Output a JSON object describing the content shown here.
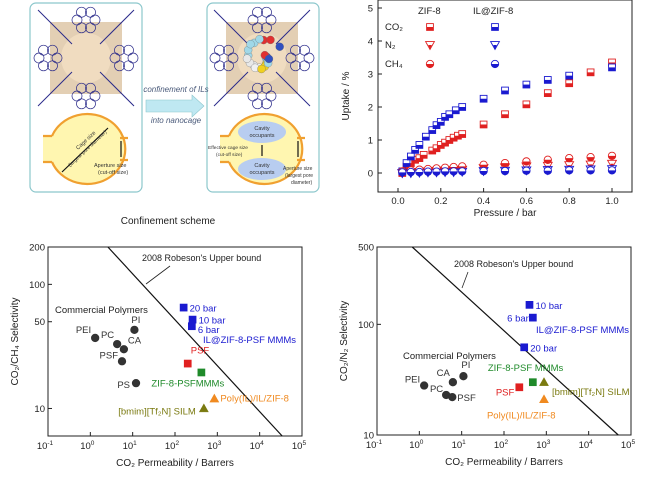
{
  "scheme": {
    "caption": "Confinement scheme",
    "arrow_top": "confinement of ILs",
    "arrow_bottom": "into nanocage",
    "left_cage_size": "Cage size",
    "left_cage_size_sub": "(largest pore diameter)",
    "left_aperture": "Aperture size",
    "left_aperture_sub": "(cut-off size)",
    "cavity_1": "Cavity",
    "cavity_1b": "occupants",
    "cavity_2": "Cavity",
    "cavity_2b": "occupants",
    "effective": "Effective cage size",
    "effective_sub": "(cut-off size)",
    "right_aperture": "Aperture size",
    "right_aperture_sub": "(largest pore",
    "right_aperture_sub2": "diameter)",
    "colors": {
      "border": "#8cc7cc",
      "ring": "#f0a030",
      "fill": "#fff6b0",
      "cavity": "#b8cdf0",
      "arrow": "#bfe8f2",
      "lattice": "#2a2a8a",
      "cage": "#d9bf9b"
    }
  },
  "chart_data": [
    {
      "type": "scatter",
      "xlabel": "Pressure / bar",
      "ylabel": "Uptake / %",
      "xlim": [
        -0.1,
        1.1
      ],
      "ylim": [
        -0.6,
        5.1
      ],
      "xticks": [
        "0.0",
        "0.2",
        "0.4",
        "0.6",
        "0.8",
        "1.0"
      ],
      "yticks": [
        "0",
        "1",
        "2",
        "3",
        "4",
        "5"
      ],
      "legend": {
        "placement": "top-left",
        "columns": [
          "ZIF-8",
          "IL@ZIF-8"
        ],
        "rows": [
          "CO₂",
          "N₂",
          "CH₄"
        ]
      },
      "marker_style": "half-filled",
      "series": [
        {
          "name": "ZIF-8 CO₂",
          "color": "#e02020",
          "marker": "square",
          "x": [
            0.02,
            0.04,
            0.06,
            0.08,
            0.1,
            0.12,
            0.16,
            0.18,
            0.2,
            0.22,
            0.24,
            0.26,
            0.28,
            0.3,
            0.4,
            0.5,
            0.6,
            0.7,
            0.8,
            0.9,
            1.0
          ],
          "y": [
            0.0,
            0.2,
            0.3,
            0.4,
            0.45,
            0.55,
            0.68,
            0.75,
            0.85,
            0.92,
            1.0,
            1.07,
            1.13,
            1.18,
            1.47,
            1.78,
            2.08,
            2.42,
            2.72,
            3.05,
            3.35
          ]
        },
        {
          "name": "IL@ZIF-8 CO₂",
          "color": "#1a1ad0",
          "marker": "square",
          "x": [
            0.02,
            0.04,
            0.06,
            0.08,
            0.1,
            0.13,
            0.16,
            0.18,
            0.2,
            0.22,
            0.24,
            0.27,
            0.3,
            0.4,
            0.5,
            0.6,
            0.7,
            0.8,
            1.0
          ],
          "y": [
            0.05,
            0.3,
            0.5,
            0.7,
            0.85,
            1.1,
            1.3,
            1.45,
            1.55,
            1.7,
            1.78,
            1.9,
            2.0,
            2.25,
            2.5,
            2.68,
            2.82,
            2.95,
            3.2
          ]
        },
        {
          "name": "ZIF-8 N₂",
          "color": "#e02020",
          "marker": "triangle-down",
          "x": [
            0.02,
            0.06,
            0.1,
            0.14,
            0.18,
            0.22,
            0.26,
            0.3,
            0.4,
            0.5,
            0.6,
            0.7,
            0.8,
            0.9,
            1.0
          ],
          "y": [
            0.0,
            0.02,
            0.04,
            0.05,
            0.07,
            0.08,
            0.09,
            0.1,
            0.15,
            0.17,
            0.2,
            0.22,
            0.24,
            0.26,
            0.28
          ]
        },
        {
          "name": "IL@ZIF-8 N₂",
          "color": "#1a1ad0",
          "marker": "triangle-down",
          "x": [
            0.02,
            0.06,
            0.1,
            0.14,
            0.18,
            0.22,
            0.26,
            0.3,
            0.4,
            0.5,
            0.6,
            0.7,
            0.8,
            0.9,
            1.0
          ],
          "y": [
            0.0,
            0.0,
            0.01,
            0.02,
            0.02,
            0.03,
            0.03,
            0.04,
            0.06,
            0.07,
            0.08,
            0.09,
            0.1,
            0.11,
            0.12
          ]
        },
        {
          "name": "ZIF-8 CH₄",
          "color": "#e02020",
          "marker": "circle",
          "x": [
            0.02,
            0.06,
            0.1,
            0.14,
            0.18,
            0.22,
            0.26,
            0.3,
            0.4,
            0.5,
            0.6,
            0.7,
            0.8,
            0.9,
            1.0
          ],
          "y": [
            0.05,
            0.08,
            0.1,
            0.12,
            0.14,
            0.16,
            0.18,
            0.2,
            0.25,
            0.3,
            0.35,
            0.4,
            0.45,
            0.48,
            0.52
          ]
        },
        {
          "name": "IL@ZIF-8 CH₄",
          "color": "#1a1ad0",
          "marker": "circle",
          "x": [
            0.02,
            0.06,
            0.1,
            0.14,
            0.18,
            0.22,
            0.26,
            0.3,
            0.4,
            0.5,
            0.6,
            0.7,
            0.8,
            0.9,
            1.0
          ],
          "y": [
            0.02,
            0.03,
            0.03,
            0.04,
            0.04,
            0.05,
            0.05,
            0.05,
            0.06,
            0.06,
            0.07,
            0.07,
            0.08,
            0.08,
            0.08
          ]
        }
      ]
    },
    {
      "type": "scatter",
      "xlabel": "CO₂ Permeability / Barrers",
      "ylabel": "CO₂/CH₄ Selectivity",
      "xscale": "log",
      "yscale": "log",
      "xlim": [
        0.1,
        100000
      ],
      "ylim": [
        6,
        200
      ],
      "xtick_exponents": [
        -1,
        0,
        1,
        2,
        3,
        4,
        5
      ],
      "yticks": [
        "10",
        "50",
        "100",
        "200"
      ],
      "ytick_values": [
        10,
        50,
        100,
        200
      ],
      "upper_bound": {
        "label": "2008 Robeson's Upper bound",
        "x": [
          2.6,
          34000
        ],
        "y": [
          200,
          6
        ]
      },
      "group_labels": [
        {
          "text": "Commercial Polymers",
          "color": "#222222"
        },
        {
          "text": "IL@ZIF-8-PSF MMMs",
          "color": "#1a1ad0"
        }
      ],
      "points": [
        {
          "label": "PEI",
          "x": 1.3,
          "y": 37,
          "color": "#333333",
          "marker": "circle"
        },
        {
          "label": "PC",
          "x": 4.3,
          "y": 33,
          "color": "#333333",
          "marker": "circle"
        },
        {
          "label": "CA",
          "x": 6.2,
          "y": 30,
          "color": "#333333",
          "marker": "circle"
        },
        {
          "label": "PI",
          "x": 11,
          "y": 43,
          "color": "#333333",
          "marker": "circle"
        },
        {
          "label": "PSF",
          "x": 5.6,
          "y": 24,
          "color": "#333333",
          "marker": "circle"
        },
        {
          "label": "PS",
          "x": 12,
          "y": 16,
          "color": "#333333",
          "marker": "circle"
        },
        {
          "label": "20 bar",
          "x": 160,
          "y": 65,
          "color": "#1a1ad0",
          "marker": "square"
        },
        {
          "label": "10 bar",
          "x": 260,
          "y": 52,
          "color": "#1a1ad0",
          "marker": "square"
        },
        {
          "label": "6 bar",
          "x": 250,
          "y": 46,
          "color": "#1a1ad0",
          "marker": "square"
        },
        {
          "label": "PSF",
          "x": 200,
          "y": 23,
          "color": "#e02020",
          "marker": "square"
        },
        {
          "label": "ZIF-8-PSFMMMs",
          "x": 420,
          "y": 19.5,
          "color": "#1f8a2a",
          "marker": "square"
        },
        {
          "label": "Poly(IL)/IL/ZIF-8",
          "x": 850,
          "y": 12,
          "color": "#f08a20",
          "marker": "triangle"
        },
        {
          "label": "[bmim][Tf₂N] SILM",
          "x": 480,
          "y": 10,
          "color": "#7a7a10",
          "marker": "triangle"
        }
      ]
    },
    {
      "type": "scatter",
      "xlabel": "CO₂ Permeability / Barrers",
      "ylabel": "CO₂/N₂ Selectivity",
      "xscale": "log",
      "yscale": "log",
      "xlim": [
        0.1,
        100000
      ],
      "ylim": [
        10,
        500
      ],
      "xtick_exponents": [
        -1,
        0,
        1,
        2,
        3,
        4,
        5
      ],
      "yticks": [
        "10",
        "100",
        "500"
      ],
      "ytick_values": [
        10,
        100,
        500
      ],
      "upper_bound": {
        "label": "2008 Robeson's Upper bound",
        "x": [
          0.68,
          50000
        ],
        "y": [
          500,
          10
        ]
      },
      "group_labels": [
        {
          "text": "Commercial Polymers",
          "color": "#222222"
        },
        {
          "text": "IL@ZIF-8-PSF MMMs",
          "color": "#1a1ad0"
        }
      ],
      "points": [
        {
          "label": "PEI",
          "x": 1.3,
          "y": 28,
          "color": "#333333",
          "marker": "circle"
        },
        {
          "label": "PC",
          "x": 4.3,
          "y": 23,
          "color": "#333333",
          "marker": "circle"
        },
        {
          "label": "CA",
          "x": 6.2,
          "y": 30,
          "color": "#333333",
          "marker": "circle"
        },
        {
          "label": "PI",
          "x": 11,
          "y": 34,
          "color": "#333333",
          "marker": "circle"
        },
        {
          "label": "PSF",
          "x": 6,
          "y": 22,
          "color": "#333333",
          "marker": "circle"
        },
        {
          "label": "10 bar",
          "x": 400,
          "y": 150,
          "color": "#1a1ad0",
          "marker": "square"
        },
        {
          "label": "6 bar",
          "x": 480,
          "y": 115,
          "color": "#1a1ad0",
          "marker": "square"
        },
        {
          "label": "20 bar",
          "x": 300,
          "y": 62,
          "color": "#1a1ad0",
          "marker": "square"
        },
        {
          "label": "PSF",
          "x": 230,
          "y": 27,
          "color": "#e02020",
          "marker": "square"
        },
        {
          "label": "ZIF-8-PSF MMMs",
          "x": 480,
          "y": 30,
          "color": "#1f8a2a",
          "marker": "square"
        },
        {
          "label": "[bmim][Tf₂N] SILM",
          "x": 880,
          "y": 30,
          "color": "#7a7a10",
          "marker": "triangle"
        },
        {
          "label": "Poly(IL)/IL/ZIF-8",
          "x": 880,
          "y": 21,
          "color": "#f08a20",
          "marker": "triangle"
        }
      ]
    }
  ]
}
